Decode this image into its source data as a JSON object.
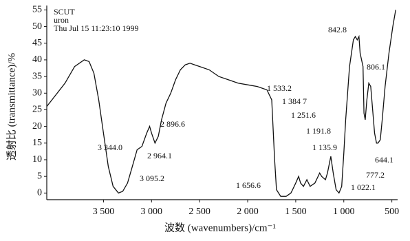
{
  "chart_data": {
    "type": "line",
    "header": [
      "SCUT",
      "uron",
      "Thu Jul 15 11:23:10 1999"
    ],
    "xlabel": "波数 (wavenumbers)/cm⁻¹",
    "ylabel": "透射比 (transmittance)/%",
    "color": "#111111",
    "x": [
      4090,
      3900,
      3800,
      3700,
      3650,
      3600,
      3550,
      3500,
      3450,
      3400,
      3344,
      3300,
      3250,
      3200,
      3150,
      3100,
      3050,
      3020,
      3000,
      2964,
      2930,
      2896,
      2850,
      2800,
      2750,
      2700,
      2650,
      2600,
      2550,
      2500,
      2400,
      2300,
      2200,
      2100,
      2000,
      1900,
      1800,
      1750,
      1720,
      1700,
      1656,
      1600,
      1550,
      1533,
      1500,
      1470,
      1450,
      1420,
      1384,
      1350,
      1300,
      1251,
      1230,
      1191,
      1170,
      1135,
      1110,
      1080,
      1050,
      1022,
      1000,
      980,
      960,
      940,
      900,
      880,
      860,
      842,
      830,
      800,
      790,
      777,
      760,
      740,
      720,
      700,
      680,
      660,
      644,
      620,
      600,
      570,
      530,
      490,
      460
    ],
    "values": [
      26,
      33,
      38,
      40,
      39.5,
      36,
      28,
      18,
      8,
      2,
      0,
      0.5,
      3,
      8,
      13,
      14,
      18,
      20,
      18,
      15,
      17,
      22,
      27,
      30,
      34,
      37,
      38.5,
      39,
      38.5,
      38,
      37,
      35,
      34,
      33,
      32.5,
      32,
      31,
      28,
      10,
      1,
      -1,
      -1,
      0,
      1,
      3,
      5,
      3,
      2,
      4,
      2,
      3,
      6,
      5,
      4,
      6,
      11,
      6,
      1,
      0,
      2,
      12,
      22,
      30,
      38,
      46,
      47,
      46,
      47,
      42,
      38,
      24,
      22,
      28,
      33,
      32,
      25,
      18,
      15,
      15,
      16,
      22,
      32,
      42,
      50,
      55
    ],
    "xlim": [
      4090,
      440
    ],
    "ylim": [
      -2,
      55.5
    ],
    "xticks": [
      {
        "value": 3500,
        "label": "3 500"
      },
      {
        "value": 3000,
        "label": "3 000"
      },
      {
        "value": 2500,
        "label": "2 500"
      },
      {
        "value": 2000,
        "label": "2 000"
      },
      {
        "value": 1500,
        "label": "1 500"
      },
      {
        "value": 1000,
        "label": "1 000"
      },
      500
    ],
    "yticks": [
      0,
      5,
      10,
      15,
      20,
      25,
      30,
      35,
      40,
      45,
      50,
      55
    ],
    "annotations": [
      "842.8",
      "806.1",
      "1 533.2",
      "1 384 7",
      "1 251.6",
      "1 191.8",
      "1 135.9",
      "2 896.6",
      "3 344.0",
      "2 964.1",
      "644.1",
      "3 095.2",
      "777.2",
      "1 656.6",
      "1 022.1"
    ]
  }
}
